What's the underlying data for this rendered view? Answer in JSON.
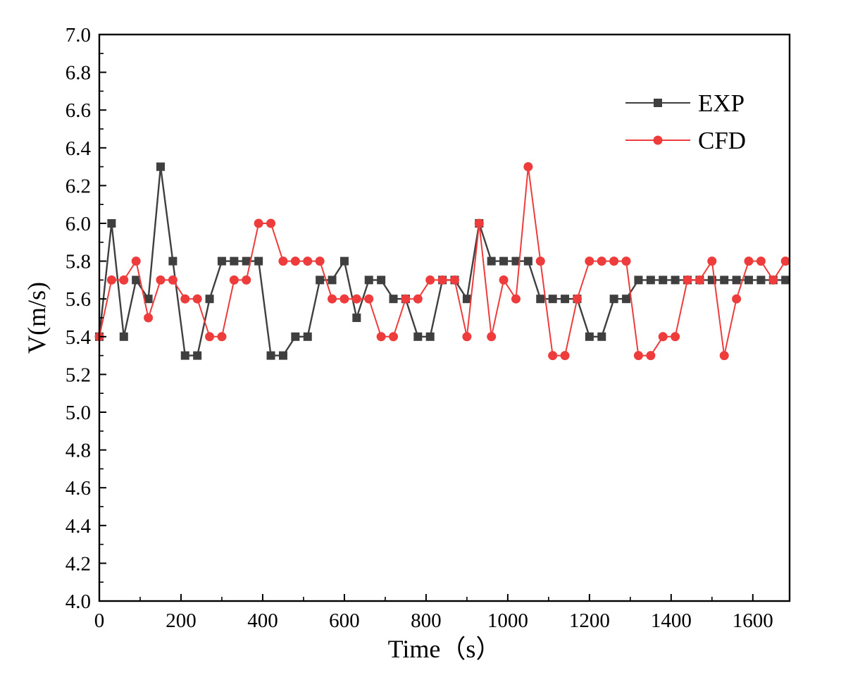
{
  "chart_data": {
    "type": "line",
    "title": "",
    "xlabel": "Time（s）",
    "ylabel": "V(m/s)",
    "xlim": [
      0,
      1690
    ],
    "ylim": [
      4.0,
      7.0
    ],
    "xticks": [
      0,
      200,
      400,
      600,
      800,
      1000,
      1200,
      1400,
      1600
    ],
    "xtick_labels": [
      "0",
      "200",
      "400",
      "600",
      "800",
      "1000",
      "1200",
      "1400",
      "1600"
    ],
    "yticks": [
      4.0,
      4.2,
      4.4,
      4.6,
      4.8,
      5.0,
      5.2,
      5.4,
      5.6,
      5.8,
      6.0,
      6.2,
      6.4,
      6.6,
      6.8,
      7.0
    ],
    "ytick_labels": [
      "4.0",
      "4.2",
      "4.4",
      "4.6",
      "4.8",
      "5.0",
      "5.2",
      "5.4",
      "5.6",
      "5.8",
      "6.0",
      "6.2",
      "6.4",
      "6.6",
      "6.8",
      "7.0"
    ],
    "grid": false,
    "legend_position": "top-right",
    "x": [
      0,
      30,
      60,
      90,
      120,
      150,
      180,
      210,
      240,
      270,
      300,
      330,
      360,
      390,
      420,
      450,
      480,
      510,
      540,
      570,
      600,
      630,
      660,
      690,
      720,
      750,
      780,
      810,
      840,
      870,
      900,
      930,
      960,
      990,
      1020,
      1050,
      1080,
      1110,
      1140,
      1170,
      1200,
      1230,
      1260,
      1290,
      1320,
      1350,
      1380,
      1410,
      1440,
      1470,
      1500,
      1530,
      1560,
      1590,
      1620,
      1650,
      1680
    ],
    "series": [
      {
        "name": "EXP",
        "color": "#3f3f3f",
        "marker": "square",
        "values": [
          5.4,
          6.0,
          5.4,
          5.7,
          5.6,
          6.3,
          5.8,
          5.3,
          5.3,
          5.6,
          5.8,
          5.8,
          5.8,
          5.8,
          5.3,
          5.3,
          5.4,
          5.4,
          5.7,
          5.7,
          5.8,
          5.5,
          5.7,
          5.7,
          5.6,
          5.6,
          5.4,
          5.4,
          5.7,
          5.7,
          5.6,
          6.0,
          5.8,
          5.8,
          5.8,
          5.8,
          5.6,
          5.6,
          5.6,
          5.6,
          5.4,
          5.4,
          5.6,
          5.6,
          5.7,
          5.7,
          5.7,
          5.7,
          5.7,
          5.7,
          5.7,
          5.7,
          5.7,
          5.7,
          5.7,
          5.7,
          5.7
        ]
      },
      {
        "name": "CFD",
        "color": "#ee3b3b",
        "marker": "circle",
        "values": [
          5.4,
          5.7,
          5.7,
          5.8,
          5.5,
          5.7,
          5.7,
          5.6,
          5.6,
          5.4,
          5.4,
          5.7,
          5.7,
          6.0,
          6.0,
          5.8,
          5.8,
          5.8,
          5.8,
          5.6,
          5.6,
          5.6,
          5.6,
          5.4,
          5.4,
          5.6,
          5.6,
          5.7,
          5.7,
          5.7,
          5.4,
          6.0,
          5.4,
          5.7,
          5.6,
          6.3,
          5.8,
          5.3,
          5.3,
          5.6,
          5.8,
          5.8,
          5.8,
          5.8,
          5.3,
          5.3,
          5.4,
          5.4,
          5.7,
          5.7,
          5.8,
          5.3,
          5.6,
          5.8,
          5.8,
          5.7,
          5.8
        ]
      }
    ]
  }
}
